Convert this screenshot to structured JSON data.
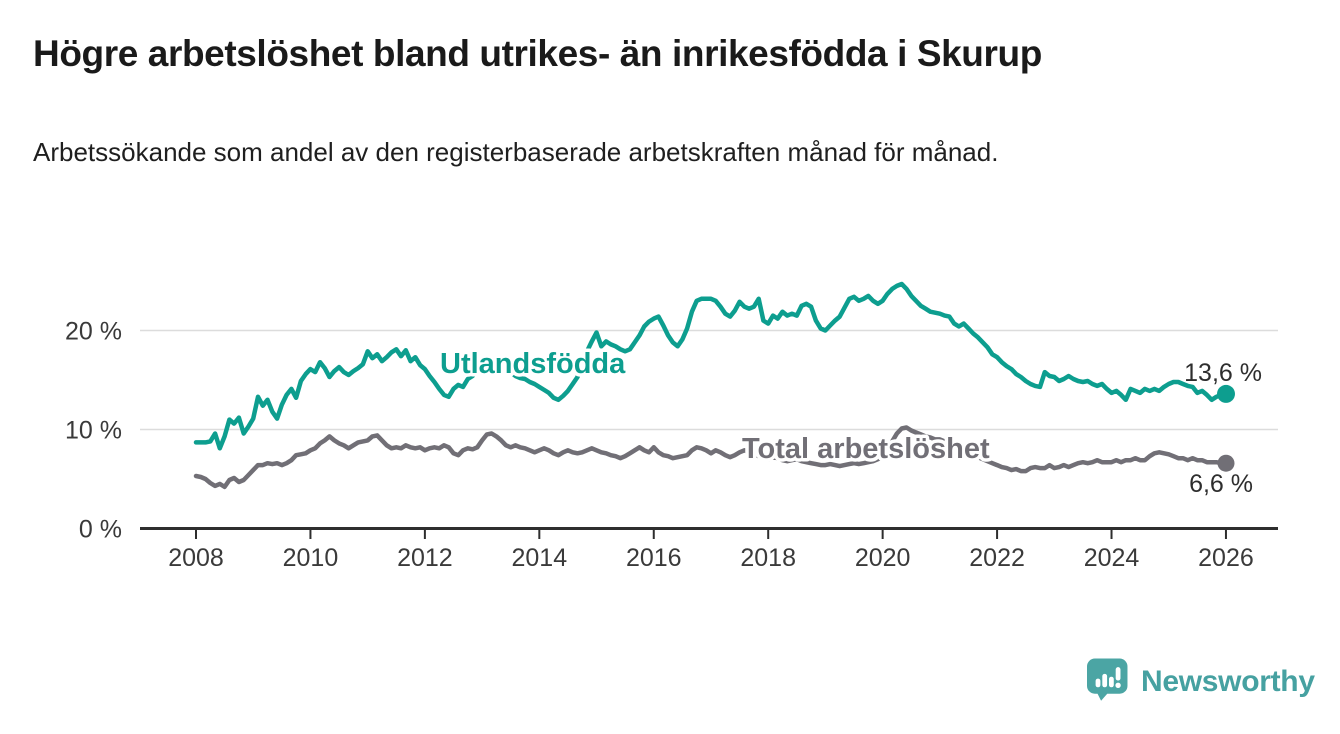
{
  "header": {
    "title": "Högre arbetslöshet bland utrikes- än inrikesfödda i Skurup",
    "subtitle": "Arbetssökande som andel av den registerbaserade arbetskraften månad för månad."
  },
  "chart_data": {
    "type": "line",
    "unit": "%",
    "grid": "horizontal",
    "legend": "inline-labels",
    "start_year": 2008,
    "points_per_year": 12,
    "xlim": [
      2007.0,
      2026.9
    ],
    "ylim": [
      0,
      27
    ],
    "y_ticks": [
      {
        "value": 0,
        "label": "0 %"
      },
      {
        "value": 10,
        "label": "10 %"
      },
      {
        "value": 20,
        "label": "20 %"
      }
    ],
    "x_ticks": [
      {
        "value": 2008,
        "label": "2008"
      },
      {
        "value": 2010,
        "label": "2010"
      },
      {
        "value": 2012,
        "label": "2012"
      },
      {
        "value": 2014,
        "label": "2014"
      },
      {
        "value": 2016,
        "label": "2016"
      },
      {
        "value": 2018,
        "label": "2018"
      },
      {
        "value": 2020,
        "label": "2020"
      },
      {
        "value": 2022,
        "label": "2022"
      },
      {
        "value": 2024,
        "label": "2024"
      },
      {
        "value": 2026,
        "label": "2026"
      }
    ],
    "series": [
      {
        "name": "Utlandsfödda",
        "color": "#0d9e8f",
        "end_label": "13,6 %",
        "values": [
          8.7,
          8.7,
          8.7,
          8.8,
          9.6,
          8.1,
          9.3,
          11.0,
          10.6,
          11.2,
          9.6,
          10.3,
          11.1,
          13.3,
          12.4,
          13.0,
          11.8,
          11.1,
          12.5,
          13.5,
          14.1,
          13.2,
          14.9,
          15.6,
          16.1,
          15.8,
          16.8,
          16.2,
          15.3,
          15.9,
          16.3,
          15.8,
          15.5,
          15.9,
          16.2,
          16.6,
          17.9,
          17.2,
          17.6,
          16.9,
          17.3,
          17.8,
          18.1,
          17.4,
          18.0,
          16.9,
          17.3,
          16.5,
          16.1,
          15.4,
          14.8,
          14.1,
          13.5,
          13.3,
          14.1,
          14.5,
          14.3,
          15.1,
          15.4,
          16.1,
          16.6,
          16.9,
          16.7,
          16.6,
          16.3,
          15.9,
          15.8,
          15.4,
          15.2,
          15.1,
          14.8,
          14.6,
          14.3,
          14.0,
          13.7,
          13.2,
          13.0,
          13.4,
          13.9,
          14.6,
          15.3,
          17.1,
          17.9,
          18.9,
          19.8,
          18.4,
          18.9,
          18.6,
          18.4,
          18.1,
          17.9,
          18.1,
          18.8,
          19.5,
          20.4,
          20.9,
          21.2,
          21.4,
          20.5,
          19.5,
          18.8,
          18.4,
          19.1,
          20.2,
          21.9,
          23.0,
          23.2,
          23.2,
          23.2,
          23.0,
          22.4,
          21.7,
          21.4,
          22.0,
          22.9,
          22.4,
          22.2,
          22.4,
          23.2,
          21.0,
          20.7,
          21.5,
          21.2,
          21.9,
          21.5,
          21.7,
          21.5,
          22.5,
          22.7,
          22.4,
          21.0,
          20.2,
          20.0,
          20.5,
          21.0,
          21.4,
          22.3,
          23.2,
          23.4,
          23.0,
          23.2,
          23.5,
          23.0,
          22.7,
          23.0,
          23.7,
          24.2,
          24.5,
          24.7,
          24.2,
          23.5,
          23.0,
          22.5,
          22.2,
          21.9,
          21.8,
          21.7,
          21.5,
          21.4,
          20.7,
          20.4,
          20.7,
          20.2,
          19.7,
          19.3,
          18.8,
          18.3,
          17.6,
          17.3,
          16.8,
          16.4,
          16.1,
          15.6,
          15.3,
          14.9,
          14.6,
          14.4,
          14.3,
          15.8,
          15.4,
          15.3,
          14.9,
          15.1,
          15.4,
          15.1,
          14.9,
          14.8,
          14.9,
          14.6,
          14.4,
          14.6,
          14.1,
          13.7,
          13.9,
          13.5,
          13.0,
          14.1,
          13.9,
          13.7,
          14.1,
          13.9,
          14.1,
          13.9,
          14.3,
          14.6,
          14.8,
          14.8,
          14.6,
          14.4,
          14.3,
          13.7,
          13.9,
          13.5,
          13.0,
          13.3,
          13.5,
          13.6
        ]
      },
      {
        "name": "Total arbetslöshet",
        "color": "#716f76",
        "end_label": "6,6 %",
        "values": [
          5.3,
          5.2,
          5.0,
          4.6,
          4.3,
          4.5,
          4.2,
          4.9,
          5.1,
          4.7,
          4.9,
          5.4,
          5.9,
          6.4,
          6.4,
          6.6,
          6.5,
          6.6,
          6.4,
          6.6,
          6.9,
          7.4,
          7.5,
          7.6,
          7.9,
          8.1,
          8.6,
          8.9,
          9.3,
          8.9,
          8.6,
          8.4,
          8.1,
          8.4,
          8.7,
          8.8,
          8.9,
          9.3,
          9.4,
          8.9,
          8.4,
          8.1,
          8.2,
          8.1,
          8.4,
          8.2,
          8.1,
          8.2,
          7.9,
          8.1,
          8.2,
          8.1,
          8.4,
          8.2,
          7.6,
          7.4,
          7.9,
          8.1,
          8.0,
          8.2,
          8.9,
          9.5,
          9.6,
          9.3,
          8.9,
          8.4,
          8.2,
          8.4,
          8.2,
          8.1,
          7.9,
          7.7,
          7.9,
          8.1,
          7.9,
          7.6,
          7.4,
          7.7,
          7.9,
          7.7,
          7.6,
          7.7,
          7.9,
          8.1,
          7.9,
          7.7,
          7.6,
          7.4,
          7.3,
          7.1,
          7.3,
          7.6,
          7.9,
          8.2,
          7.9,
          7.7,
          8.2,
          7.7,
          7.4,
          7.3,
          7.1,
          7.2,
          7.3,
          7.4,
          7.9,
          8.2,
          8.1,
          7.9,
          7.6,
          7.9,
          7.7,
          7.4,
          7.2,
          7.4,
          7.7,
          7.9,
          7.7,
          7.5,
          7.3,
          7.1,
          7.0,
          7.2,
          7.1,
          6.9,
          6.8,
          6.9,
          7.0,
          6.8,
          6.7,
          6.6,
          6.5,
          6.4,
          6.4,
          6.5,
          6.4,
          6.3,
          6.4,
          6.5,
          6.6,
          6.5,
          6.6,
          6.7,
          6.8,
          7.0,
          7.2,
          7.8,
          8.8,
          9.6,
          10.1,
          10.2,
          9.9,
          9.7,
          9.5,
          9.3,
          9.2,
          9.0,
          9.0,
          8.8,
          8.6,
          8.3,
          8.0,
          7.8,
          7.6,
          7.4,
          7.2,
          7.0,
          6.8,
          6.6,
          6.4,
          6.2,
          6.1,
          5.9,
          6.0,
          5.8,
          5.8,
          6.1,
          6.2,
          6.1,
          6.1,
          6.4,
          6.1,
          6.2,
          6.4,
          6.2,
          6.4,
          6.6,
          6.7,
          6.6,
          6.7,
          6.9,
          6.7,
          6.7,
          6.7,
          6.9,
          6.7,
          6.9,
          6.9,
          7.1,
          6.9,
          6.9,
          7.3,
          7.6,
          7.7,
          7.6,
          7.5,
          7.3,
          7.1,
          7.1,
          6.9,
          7.1,
          6.9,
          6.9,
          6.7,
          6.7,
          6.7,
          6.6,
          6.6
        ]
      }
    ],
    "colors": {
      "grid": "#dcdcdc",
      "axis": "#2e2e2e",
      "tick_text": "#3a3a3a",
      "end_label_text": "#2e2e2e"
    }
  },
  "footer": {
    "brand": "Newsworthy"
  }
}
